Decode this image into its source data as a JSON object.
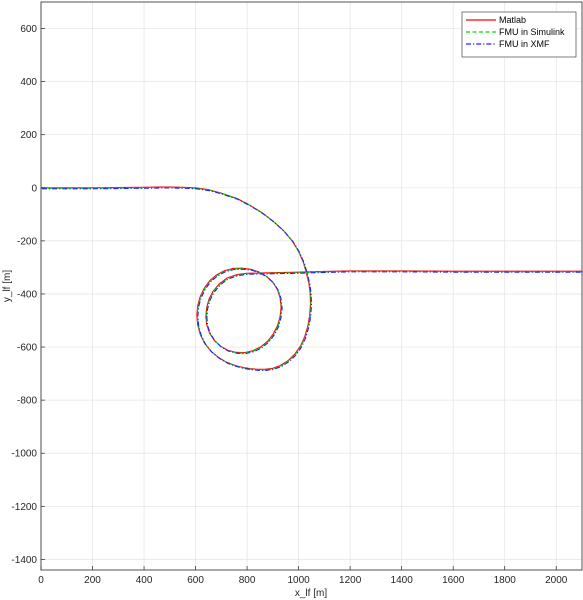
{
  "chart_data": {
    "type": "line",
    "title": "",
    "xlabel": "x_lf [m]",
    "ylabel": "y_lf [m]",
    "xlim": [
      0,
      2100
    ],
    "ylim": [
      -1440,
      700
    ],
    "xticks": [
      0,
      200,
      400,
      600,
      800,
      1000,
      1200,
      1400,
      1600,
      1800,
      2000
    ],
    "yticks": [
      600,
      400,
      200,
      0,
      -200,
      -400,
      -600,
      -800,
      -1000,
      -1200,
      -1400
    ],
    "grid": true,
    "legend_position": "top-right",
    "colors": {
      "Matlab": "#ff0000",
      "FMU in Simulink": "#00dd00",
      "FMU in XMF": "#2222ff"
    },
    "path": [
      [
        0,
        0
      ],
      [
        200,
        0
      ],
      [
        300,
        1
      ],
      [
        400,
        2
      ],
      [
        460,
        3
      ],
      [
        500,
        3
      ],
      [
        550,
        2
      ],
      [
        600,
        0
      ],
      [
        650,
        -7
      ],
      [
        700,
        -20
      ],
      [
        760,
        -40
      ],
      [
        810,
        -65
      ],
      [
        860,
        -95
      ],
      [
        900,
        -125
      ],
      [
        940,
        -160
      ],
      [
        975,
        -200
      ],
      [
        1000,
        -240
      ],
      [
        1018,
        -280
      ],
      [
        1030,
        -320
      ],
      [
        1040,
        -360
      ],
      [
        1045,
        -400
      ],
      [
        1046,
        -440
      ],
      [
        1043,
        -480
      ],
      [
        1036,
        -520
      ],
      [
        1024,
        -560
      ],
      [
        1008,
        -595
      ],
      [
        985,
        -627
      ],
      [
        958,
        -652
      ],
      [
        928,
        -670
      ],
      [
        900,
        -680
      ],
      [
        870,
        -684
      ],
      [
        840,
        -684
      ],
      [
        810,
        -681
      ],
      [
        780,
        -676
      ],
      [
        750,
        -668
      ],
      [
        720,
        -657
      ],
      [
        690,
        -640
      ],
      [
        660,
        -616
      ],
      [
        635,
        -586
      ],
      [
        618,
        -552
      ],
      [
        608,
        -515
      ],
      [
        605,
        -480
      ],
      [
        608,
        -445
      ],
      [
        618,
        -410
      ],
      [
        634,
        -378
      ],
      [
        655,
        -350
      ],
      [
        682,
        -328
      ],
      [
        713,
        -312
      ],
      [
        745,
        -304
      ],
      [
        780,
        -303
      ],
      [
        815,
        -307
      ],
      [
        848,
        -318
      ],
      [
        876,
        -334
      ],
      [
        900,
        -356
      ],
      [
        918,
        -384
      ],
      [
        928,
        -415
      ],
      [
        932,
        -450
      ],
      [
        928,
        -485
      ],
      [
        918,
        -520
      ],
      [
        902,
        -550
      ],
      [
        880,
        -578
      ],
      [
        852,
        -600
      ],
      [
        822,
        -614
      ],
      [
        790,
        -621
      ],
      [
        757,
        -620
      ],
      [
        725,
        -612
      ],
      [
        696,
        -596
      ],
      [
        672,
        -574
      ],
      [
        654,
        -547
      ],
      [
        643,
        -516
      ],
      [
        640,
        -484
      ],
      [
        643,
        -452
      ],
      [
        652,
        -420
      ],
      [
        668,
        -390
      ],
      [
        692,
        -362
      ],
      [
        722,
        -340
      ],
      [
        760,
        -327
      ],
      [
        800,
        -322
      ],
      [
        900,
        -320
      ],
      [
        1000,
        -318
      ],
      [
        1100,
        -315
      ],
      [
        1200,
        -313
      ],
      [
        1400,
        -313
      ],
      [
        1600,
        -314
      ],
      [
        1800,
        -314
      ],
      [
        2000,
        -314
      ],
      [
        2100,
        -314
      ]
    ],
    "series": [
      {
        "name": "Matlab",
        "style": "solid"
      },
      {
        "name": "FMU in Simulink",
        "style": "dashed"
      },
      {
        "name": "FMU in XMF",
        "style": "dashdot"
      }
    ]
  }
}
